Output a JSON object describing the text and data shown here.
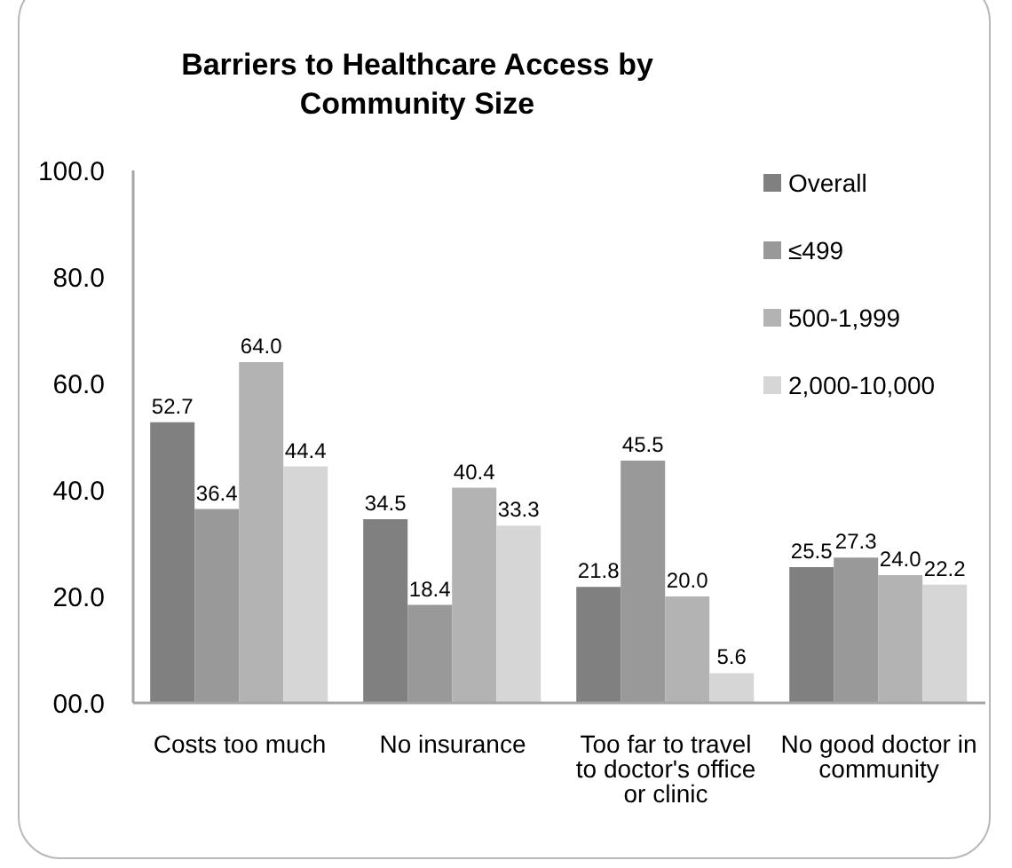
{
  "chart_data": {
    "type": "bar",
    "title": "Barriers to Healthcare Access by Community Size",
    "categories": [
      "Costs too much",
      "No insurance",
      "Too far to travel to doctor's office or clinic",
      "No good doctor in community"
    ],
    "series": [
      {
        "name": "Overall",
        "color": "#808080",
        "values": [
          52.7,
          34.5,
          21.8,
          25.5
        ],
        "value_labels": [
          "52.7",
          "34.5",
          "21.8",
          "25.5"
        ]
      },
      {
        "name": "≤499",
        "color": "#999999",
        "values": [
          36.4,
          18.4,
          45.5,
          27.3
        ],
        "value_labels": [
          "36.4",
          "18.4",
          "45.5",
          "27.3"
        ]
      },
      {
        "name": "500-1,999",
        "color": "#b3b3b3",
        "values": [
          64.0,
          40.4,
          20.0,
          24.0
        ],
        "value_labels": [
          "64.0",
          "40.4",
          "20.0",
          "24.0"
        ]
      },
      {
        "name": "2,000-10,000",
        "color": "#d6d6d6",
        "values": [
          44.4,
          33.3,
          5.6,
          22.2
        ],
        "value_labels": [
          "44.4",
          "33.3",
          "5.6",
          "22.2"
        ]
      }
    ],
    "ylim": [
      0,
      100
    ],
    "yticks": [
      {
        "value": 0,
        "label": "00.0"
      },
      {
        "value": 20,
        "label": "20.0"
      },
      {
        "value": 40,
        "label": "40.0"
      },
      {
        "value": 60,
        "label": "60.0"
      },
      {
        "value": 80,
        "label": "80.0"
      },
      {
        "value": 100,
        "label": "100.0"
      }
    ],
    "legend": "top right"
  }
}
